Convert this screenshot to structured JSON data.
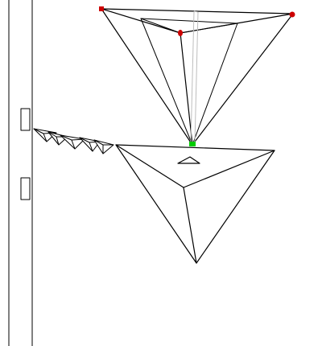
{
  "colors": {
    "background": "#ffffff",
    "line": "#000000",
    "guide": "#bdbdbd",
    "vertex_marker": "#cc0000",
    "apex_marker": "#00cc00"
  },
  "markers": {
    "vertex_markers": 3,
    "apex_markers": 1
  },
  "small_pyramids": {
    "count": 5
  }
}
